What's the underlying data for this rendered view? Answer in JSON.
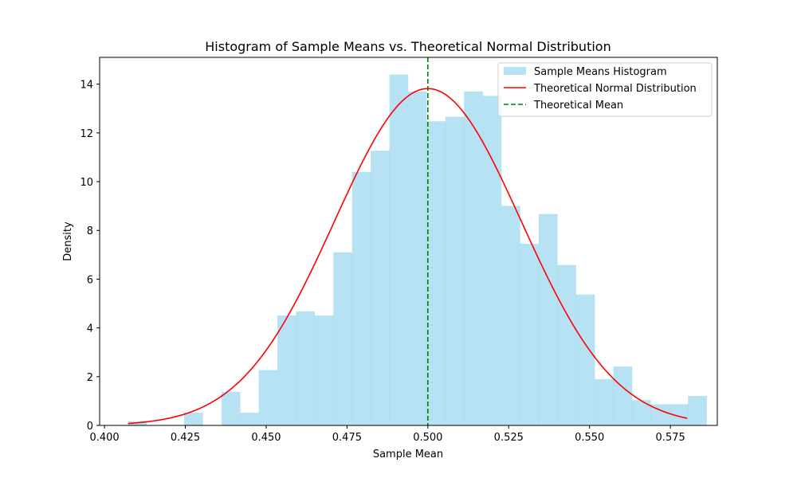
{
  "chart_data": {
    "type": "bar",
    "title": "Histogram of Sample Means vs. Theoretical Normal Distribution",
    "xlabel": "Sample Mean",
    "ylabel": "Density",
    "xlim": [
      0.3985,
      0.5895
    ],
    "ylim": [
      0,
      15.1
    ],
    "x_ticks": [
      0.4,
      0.425,
      0.45,
      0.475,
      0.5,
      0.525,
      0.55,
      0.575
    ],
    "x_tick_labels": [
      "0.400",
      "0.425",
      "0.450",
      "0.475",
      "0.500",
      "0.525",
      "0.550",
      "0.575"
    ],
    "y_ticks": [
      0,
      2,
      4,
      6,
      8,
      10,
      12,
      14
    ],
    "y_tick_labels": [
      "0",
      "2",
      "4",
      "6",
      "8",
      "10",
      "12",
      "14"
    ],
    "grid": false,
    "legend_position": "top-right",
    "histogram": {
      "name": "Sample Means Histogram",
      "color": "#87ceeb",
      "opacity": 0.6,
      "bin_start": 0.4073,
      "bin_width": 0.005771,
      "densities": [
        0.17,
        0,
        0,
        0.52,
        0,
        1.38,
        0.52,
        2.27,
        4.51,
        4.68,
        4.51,
        7.1,
        10.4,
        11.27,
        14.39,
        13.7,
        12.48,
        12.66,
        13.7,
        13.52,
        9.01,
        7.45,
        8.67,
        6.58,
        5.37,
        1.9,
        2.42,
        1.04,
        0.87,
        0.87,
        1.21
      ]
    },
    "normal_curve": {
      "name": "Theoretical Normal Distribution",
      "color": "#ff0000",
      "mean": 0.5,
      "std": 0.02887,
      "x_range": [
        0.4073,
        0.5802
      ]
    },
    "mean_line": {
      "name": "Theoretical Mean",
      "color": "#008000",
      "x": 0.5,
      "style": "dashed"
    }
  }
}
